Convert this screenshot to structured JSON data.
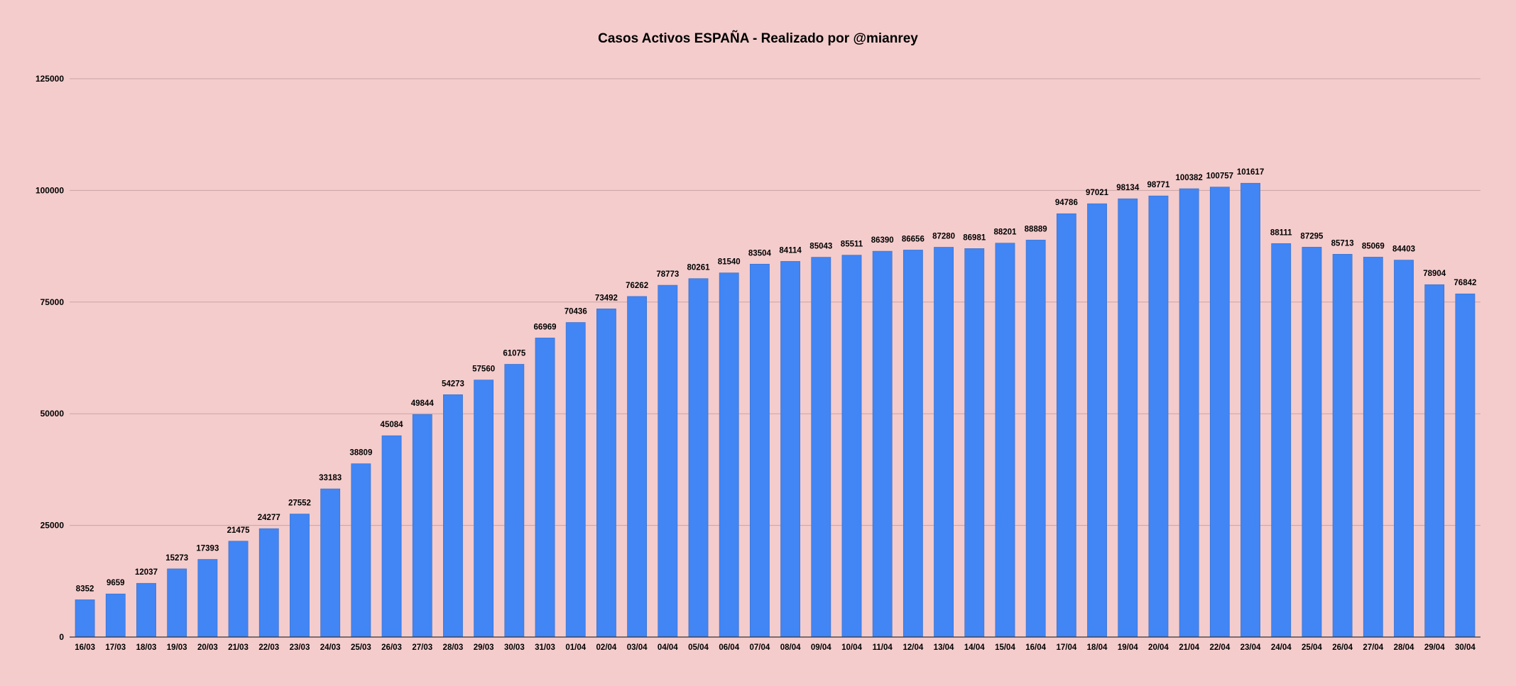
{
  "chart_data": {
    "type": "bar",
    "title": "Casos Activos ESPAÑA - Realizado por @mianrey",
    "xlabel": "",
    "ylabel": "",
    "ylim": [
      0,
      125000
    ],
    "yticks": [
      0,
      25000,
      50000,
      75000,
      100000,
      125000
    ],
    "grid": true,
    "legend": "none",
    "colors": {
      "bar": "#4285f4",
      "background": "#f4cccc",
      "grid": "#c9a3a3",
      "axis": "#333333"
    },
    "categories": [
      "16/03",
      "17/03",
      "18/03",
      "19/03",
      "20/03",
      "21/03",
      "22/03",
      "23/03",
      "24/03",
      "25/03",
      "26/03",
      "27/03",
      "28/03",
      "29/03",
      "30/03",
      "31/03",
      "01/04",
      "02/04",
      "03/04",
      "04/04",
      "05/04",
      "06/04",
      "07/04",
      "08/04",
      "09/04",
      "10/04",
      "11/04",
      "12/04",
      "13/04",
      "14/04",
      "15/04",
      "16/04",
      "17/04",
      "18/04",
      "19/04",
      "20/04",
      "21/04",
      "22/04",
      "23/04",
      "24/04",
      "25/04",
      "26/04",
      "27/04",
      "28/04",
      "29/04",
      "30/04"
    ],
    "values": [
      8352,
      9659,
      12037,
      15273,
      17393,
      21475,
      24277,
      27552,
      33183,
      38809,
      45084,
      49844,
      54273,
      57560,
      61075,
      66969,
      70436,
      73492,
      76262,
      78773,
      80261,
      81540,
      83504,
      84114,
      85043,
      85511,
      86390,
      86656,
      87280,
      86981,
      88201,
      88889,
      94786,
      97021,
      98134,
      98771,
      100382,
      100757,
      101617,
      88111,
      87295,
      85713,
      85069,
      84403,
      78904,
      76842
    ]
  }
}
